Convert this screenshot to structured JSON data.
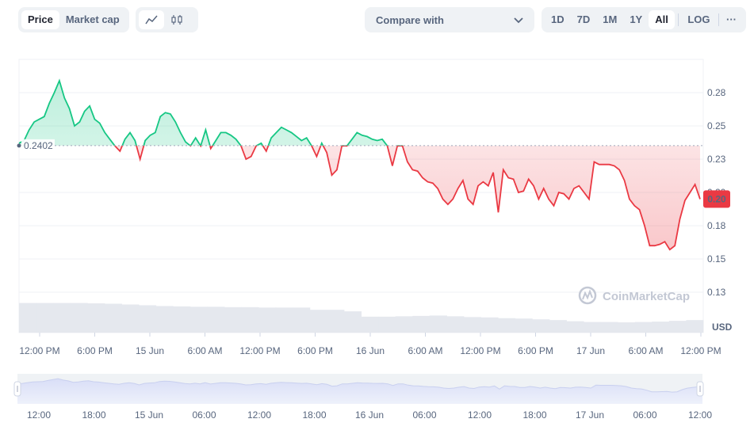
{
  "toolbar": {
    "price_label": "Price",
    "market_cap_label": "Market cap",
    "compare_label": "Compare with",
    "range_1d": "1D",
    "range_7d": "7D",
    "range_1m": "1M",
    "range_1y": "1Y",
    "range_all": "All",
    "log_label": "LOG",
    "more_label": "···",
    "active_range": "All",
    "active_view": "line"
  },
  "chart_data": {
    "type": "line",
    "title": "",
    "xlabel": "",
    "ylabel": "USD",
    "x_ticks": [
      "12:00 PM",
      "6:00 PM",
      "15 Jun",
      "6:00 AM",
      "12:00 PM",
      "6:00 PM",
      "16 Jun",
      "6:00 AM",
      "12:00 PM",
      "6:00 PM",
      "17 Jun",
      "6:00 AM",
      "12:00 PM"
    ],
    "y_ticks": [
      "0.28",
      "0.25",
      "0.23",
      "0.20",
      "0.18",
      "0.15",
      "0.13"
    ],
    "ylim": [
      0.13,
      0.3
    ],
    "baseline_value": 0.2402,
    "baseline_label": "0.2402",
    "current_price_label": "0.20",
    "up_color": "#16c784",
    "down_color": "#ea3943",
    "series": [
      {
        "name": "",
        "points": [
          [
            0,
            0.242
          ],
          [
            0.25,
            0.244
          ],
          [
            0.5,
            0.252
          ],
          [
            0.75,
            0.258
          ],
          [
            1,
            0.26
          ],
          [
            1.25,
            0.262
          ],
          [
            1.5,
            0.272
          ],
          [
            1.75,
            0.28
          ],
          [
            2,
            0.289
          ],
          [
            2.25,
            0.276
          ],
          [
            2.5,
            0.268
          ],
          [
            2.75,
            0.255
          ],
          [
            3,
            0.258
          ],
          [
            3.25,
            0.266
          ],
          [
            3.5,
            0.27
          ],
          [
            3.75,
            0.26
          ],
          [
            4,
            0.257
          ],
          [
            4.25,
            0.25
          ],
          [
            4.5,
            0.245
          ],
          [
            4.75,
            0.24
          ],
          [
            5,
            0.236
          ],
          [
            5.25,
            0.245
          ],
          [
            5.5,
            0.25
          ],
          [
            5.75,
            0.244
          ],
          [
            6,
            0.23
          ],
          [
            6.25,
            0.244
          ],
          [
            6.5,
            0.248
          ],
          [
            6.75,
            0.25
          ],
          [
            7,
            0.262
          ],
          [
            7.25,
            0.265
          ],
          [
            7.5,
            0.264
          ],
          [
            7.75,
            0.258
          ],
          [
            8,
            0.25
          ],
          [
            8.25,
            0.243
          ],
          [
            8.5,
            0.24
          ],
          [
            8.75,
            0.246
          ],
          [
            9,
            0.24
          ],
          [
            9.25,
            0.252
          ],
          [
            9.5,
            0.238
          ],
          [
            9.75,
            0.244
          ],
          [
            10,
            0.25
          ],
          [
            10.25,
            0.25
          ],
          [
            10.5,
            0.248
          ],
          [
            10.75,
            0.245
          ],
          [
            11,
            0.24
          ],
          [
            11.25,
            0.23
          ],
          [
            11.5,
            0.232
          ],
          [
            11.75,
            0.24
          ],
          [
            12,
            0.242
          ],
          [
            12.25,
            0.236
          ],
          [
            12.5,
            0.246
          ],
          [
            12.75,
            0.25
          ],
          [
            13,
            0.254
          ],
          [
            13.25,
            0.252
          ],
          [
            13.5,
            0.25
          ],
          [
            13.75,
            0.247
          ],
          [
            14,
            0.244
          ],
          [
            14.25,
            0.246
          ],
          [
            14.5,
            0.24
          ],
          [
            14.75,
            0.232
          ],
          [
            15,
            0.242
          ],
          [
            15.25,
            0.235
          ],
          [
            15.5,
            0.218
          ],
          [
            15.75,
            0.222
          ],
          [
            16,
            0.24
          ],
          [
            16.25,
            0.24
          ],
          [
            16.5,
            0.245
          ],
          [
            16.75,
            0.25
          ],
          [
            17,
            0.248
          ],
          [
            17.25,
            0.247
          ],
          [
            17.5,
            0.245
          ],
          [
            17.75,
            0.244
          ],
          [
            18,
            0.245
          ],
          [
            18.25,
            0.24
          ],
          [
            18.5,
            0.225
          ],
          [
            18.75,
            0.24
          ],
          [
            19,
            0.24
          ],
          [
            19.25,
            0.228
          ],
          [
            19.5,
            0.222
          ],
          [
            19.75,
            0.221
          ],
          [
            20,
            0.216
          ],
          [
            20.25,
            0.213
          ],
          [
            20.5,
            0.212
          ],
          [
            20.75,
            0.208
          ],
          [
            21,
            0.2
          ],
          [
            21.25,
            0.196
          ],
          [
            21.5,
            0.2
          ],
          [
            21.75,
            0.208
          ],
          [
            22,
            0.214
          ],
          [
            22.25,
            0.2
          ],
          [
            22.5,
            0.196
          ],
          [
            22.75,
            0.21
          ],
          [
            23,
            0.213
          ],
          [
            23.25,
            0.21
          ],
          [
            23.5,
            0.22
          ],
          [
            23.75,
            0.19
          ],
          [
            24,
            0.222
          ],
          [
            24.25,
            0.216
          ],
          [
            24.5,
            0.215
          ],
          [
            24.75,
            0.205
          ],
          [
            25,
            0.206
          ],
          [
            25.25,
            0.215
          ],
          [
            25.5,
            0.21
          ],
          [
            25.75,
            0.2
          ],
          [
            26,
            0.208
          ],
          [
            26.25,
            0.2
          ],
          [
            26.5,
            0.195
          ],
          [
            26.75,
            0.205
          ],
          [
            27,
            0.204
          ],
          [
            27.25,
            0.2
          ],
          [
            27.5,
            0.208
          ],
          [
            27.75,
            0.21
          ],
          [
            28,
            0.205
          ],
          [
            28.25,
            0.2
          ],
          [
            28.5,
            0.228
          ],
          [
            28.75,
            0.226
          ],
          [
            29,
            0.226
          ],
          [
            29.25,
            0.226
          ],
          [
            29.5,
            0.225
          ],
          [
            29.75,
            0.222
          ],
          [
            30,
            0.214
          ],
          [
            30.25,
            0.2
          ],
          [
            30.5,
            0.195
          ],
          [
            30.75,
            0.192
          ],
          [
            31,
            0.18
          ],
          [
            31.25,
            0.165
          ],
          [
            31.5,
            0.165
          ],
          [
            31.75,
            0.166
          ],
          [
            32,
            0.168
          ],
          [
            32.25,
            0.162
          ],
          [
            32.5,
            0.165
          ],
          [
            32.75,
            0.185
          ],
          [
            33,
            0.199
          ],
          [
            33.25,
            0.205
          ],
          [
            33.5,
            0.211
          ],
          [
            33.75,
            0.2
          ]
        ]
      }
    ],
    "volume": [
      0.78,
      0.78,
      0.78,
      0.78,
      0.77,
      0.76,
      0.74,
      0.72,
      0.7,
      0.69,
      0.68,
      0.68,
      0.67,
      0.67,
      0.66,
      0.66,
      0.66,
      0.6,
      0.6,
      0.56,
      0.42,
      0.42,
      0.43,
      0.44,
      0.45,
      0.43,
      0.41,
      0.4,
      0.38,
      0.37,
      0.35,
      0.33,
      0.3,
      0.28,
      0.28,
      0.27,
      0.28,
      0.29,
      0.31,
      0.33
    ],
    "watermark": "CoinMarketCap",
    "currency_label": "USD",
    "navigator_ticks": [
      "12:00",
      "18:00",
      "15 Jun",
      "06:00",
      "12:00",
      "18:00",
      "16 Jun",
      "06:00",
      "12:00",
      "18:00",
      "17 Jun",
      "06:00",
      "12:00"
    ]
  }
}
